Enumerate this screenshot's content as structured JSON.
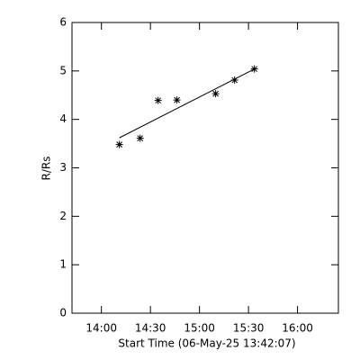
{
  "chart_data": {
    "type": "scatter",
    "xlabel": "Start Time (06-May-25 13:42:07)",
    "ylabel": "R/Rs",
    "series": [
      {
        "color": "#000000",
        "marker": "asterisk",
        "x": [
          851.0,
          863.7,
          874.7,
          886.2,
          909.9,
          921.5,
          933.6
        ],
        "values": [
          3.48,
          3.61,
          4.39,
          4.4,
          4.53,
          4.81,
          5.04
        ]
      },
      {
        "color": "#000000",
        "marker": "line",
        "x": [
          851.0,
          933.6
        ],
        "values": [
          3.62,
          5.04
        ]
      }
    ],
    "xlim": [
      822,
      985
    ],
    "xticks": [
      {
        "value": 840,
        "label": "14:00"
      },
      {
        "value": 870,
        "label": "14:30"
      },
      {
        "value": 900,
        "label": "15:00"
      },
      {
        "value": 930,
        "label": "15:30"
      },
      {
        "value": 960,
        "label": "16:00"
      }
    ],
    "ylim": [
      0,
      6
    ],
    "yticks": [
      0,
      1,
      2,
      3,
      4,
      5,
      6
    ]
  }
}
